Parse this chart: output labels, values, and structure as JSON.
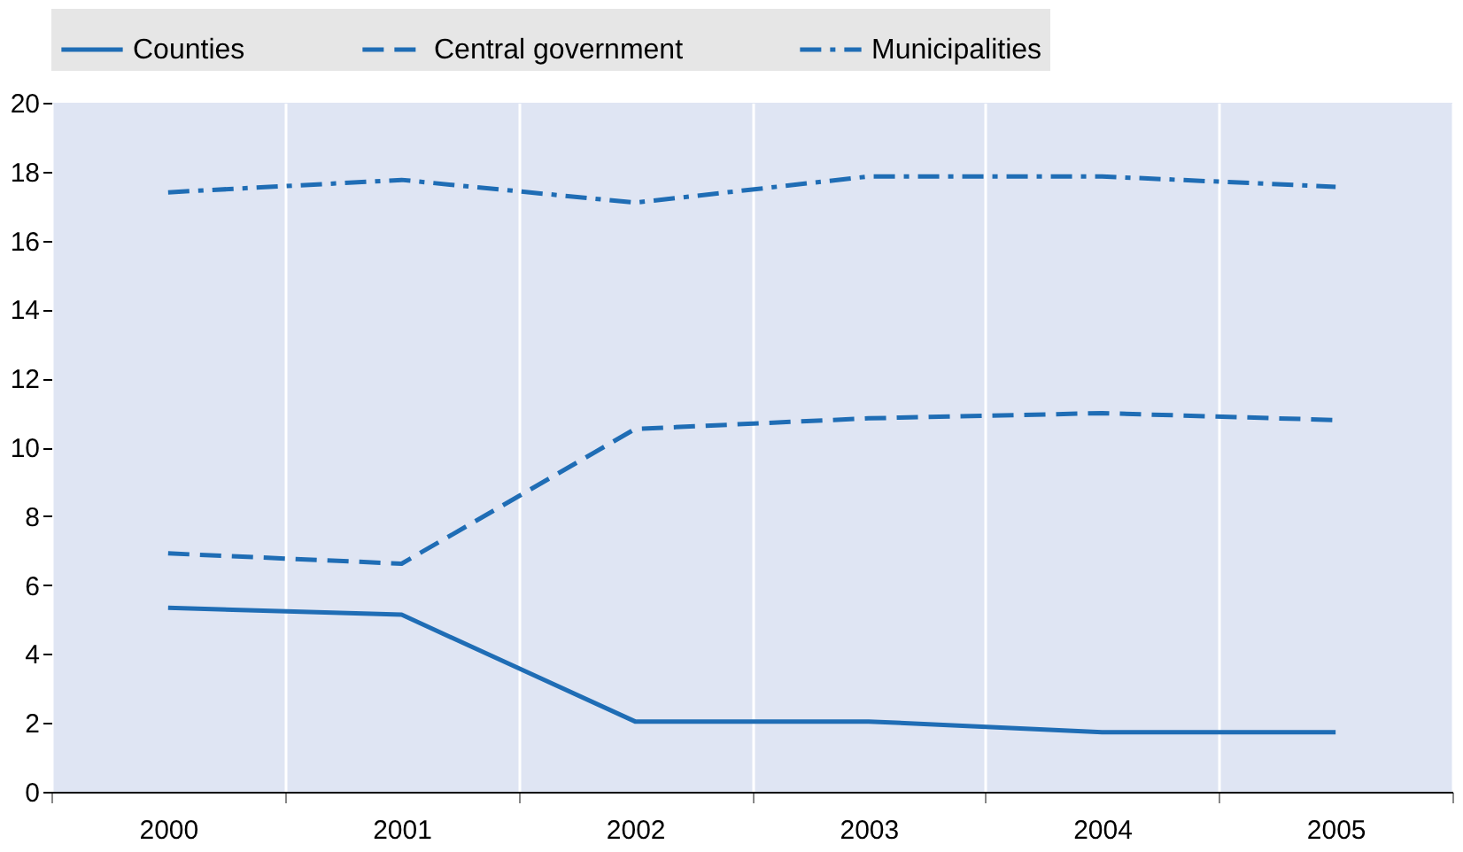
{
  "chart_data": {
    "type": "line",
    "categories": [
      "2000",
      "2001",
      "2002",
      "2003",
      "2004",
      "2005"
    ],
    "series": [
      {
        "name": "Counties",
        "color": "#1f6db5",
        "line_style": "solid",
        "values": [
          5.34,
          5.14,
          2.04,
          2.04,
          1.73,
          1.73
        ]
      },
      {
        "name": "Central government",
        "color": "#1f6db5",
        "line_style": "dashed",
        "values": [
          6.92,
          6.62,
          10.53,
          10.84,
          10.99,
          10.79
        ]
      },
      {
        "name": "Municipalities",
        "color": "#1f6db5",
        "line_style": "dashdot",
        "values": [
          17.4,
          17.76,
          17.1,
          17.86,
          17.86,
          17.56
        ]
      }
    ],
    "ylim": [
      0,
      20
    ],
    "yticks": [
      0,
      2,
      4,
      6,
      8,
      10,
      12,
      14,
      16,
      18,
      20
    ],
    "grid": "x",
    "legend": "top",
    "marker": "none"
  }
}
